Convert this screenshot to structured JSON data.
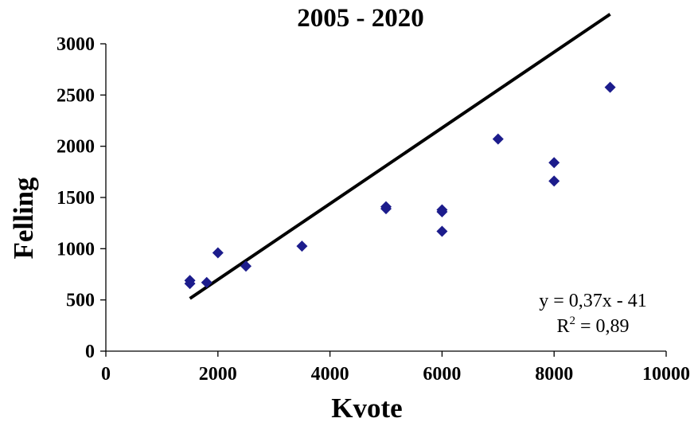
{
  "chart_data": {
    "type": "scatter",
    "title": "2005 - 2020",
    "xlabel": "Kvote",
    "ylabel": "Felling",
    "xlim": [
      0,
      10000
    ],
    "ylim": [
      0,
      3000
    ],
    "xticks": [
      0,
      2000,
      4000,
      6000,
      8000,
      10000
    ],
    "yticks": [
      0,
      500,
      1000,
      1500,
      2000,
      2500,
      3000
    ],
    "grid": false,
    "marker": "diamond",
    "marker_color": "#1c1c8c",
    "series": [
      {
        "points": [
          {
            "x": 1500,
            "y": 690
          },
          {
            "x": 1500,
            "y": 660
          },
          {
            "x": 1800,
            "y": 670
          },
          {
            "x": 2000,
            "y": 960
          },
          {
            "x": 2500,
            "y": 830
          },
          {
            "x": 3500,
            "y": 1025
          },
          {
            "x": 5000,
            "y": 1410
          },
          {
            "x": 5000,
            "y": 1390
          },
          {
            "x": 6000,
            "y": 1380
          },
          {
            "x": 6000,
            "y": 1360
          },
          {
            "x": 6000,
            "y": 1170
          },
          {
            "x": 7000,
            "y": 2070
          },
          {
            "x": 8000,
            "y": 1840
          },
          {
            "x": 8000,
            "y": 1660
          },
          {
            "x": 9000,
            "y": 2575
          }
        ]
      }
    ],
    "trendline": {
      "type": "linear",
      "slope": 0.37,
      "intercept": -41,
      "x_range": [
        1500,
        9000
      ],
      "color": "#000000",
      "equation_label": "y = 0,37x - 41",
      "r2_prefix": "R",
      "r2_sup": "2",
      "r2_suffix": " = 0,89"
    }
  }
}
